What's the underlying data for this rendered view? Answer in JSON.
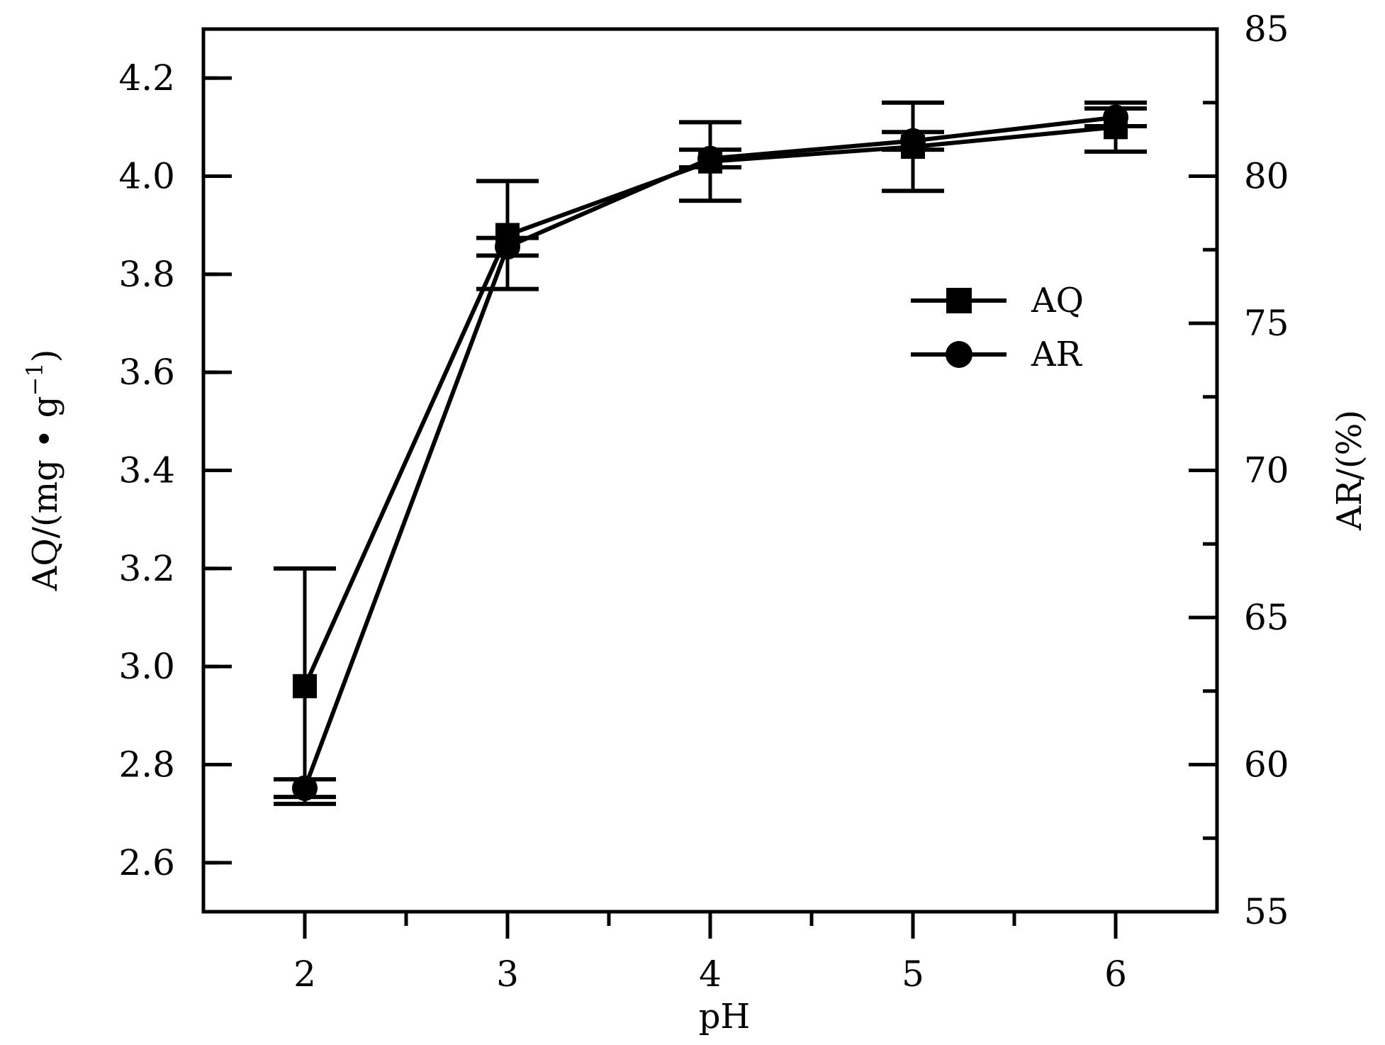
{
  "chart_data": {
    "type": "line",
    "x_label": "pH",
    "y_left_label": "AQ/(mg • g",
    "y_left_label_sup": "−1",
    "y_left_label_close": ")",
    "y_right_label": "AR/(%)",
    "x": [
      2,
      3,
      4,
      5,
      6
    ],
    "x_ticks": [
      "2",
      "3",
      "4",
      "5",
      "6"
    ],
    "x_range": [
      1.5,
      6.5
    ],
    "y_left_range": [
      2.5,
      4.3
    ],
    "y_left_ticks": [
      "2.6",
      "2.8",
      "3.0",
      "3.2",
      "3.4",
      "3.6",
      "3.8",
      "4.0",
      "4.2"
    ],
    "y_right_range": [
      55,
      85
    ],
    "y_right_ticks": [
      "55",
      "60",
      "65",
      "70",
      "75",
      "80",
      "85"
    ],
    "legend_position": "upper-right",
    "series": [
      {
        "name": "AQ",
        "marker": "square",
        "axis": "left",
        "values": [
          2.96,
          3.88,
          4.03,
          4.06,
          4.1
        ],
        "errors": [
          0.24,
          0.11,
          0.08,
          0.09,
          0.05
        ]
      },
      {
        "name": "AR",
        "marker": "circle",
        "axis": "right",
        "values": [
          59.2,
          77.6,
          80.6,
          81.2,
          82.0
        ],
        "errors": [
          0.3,
          0.3,
          0.3,
          0.3,
          0.3
        ]
      }
    ],
    "color": "#000000"
  }
}
